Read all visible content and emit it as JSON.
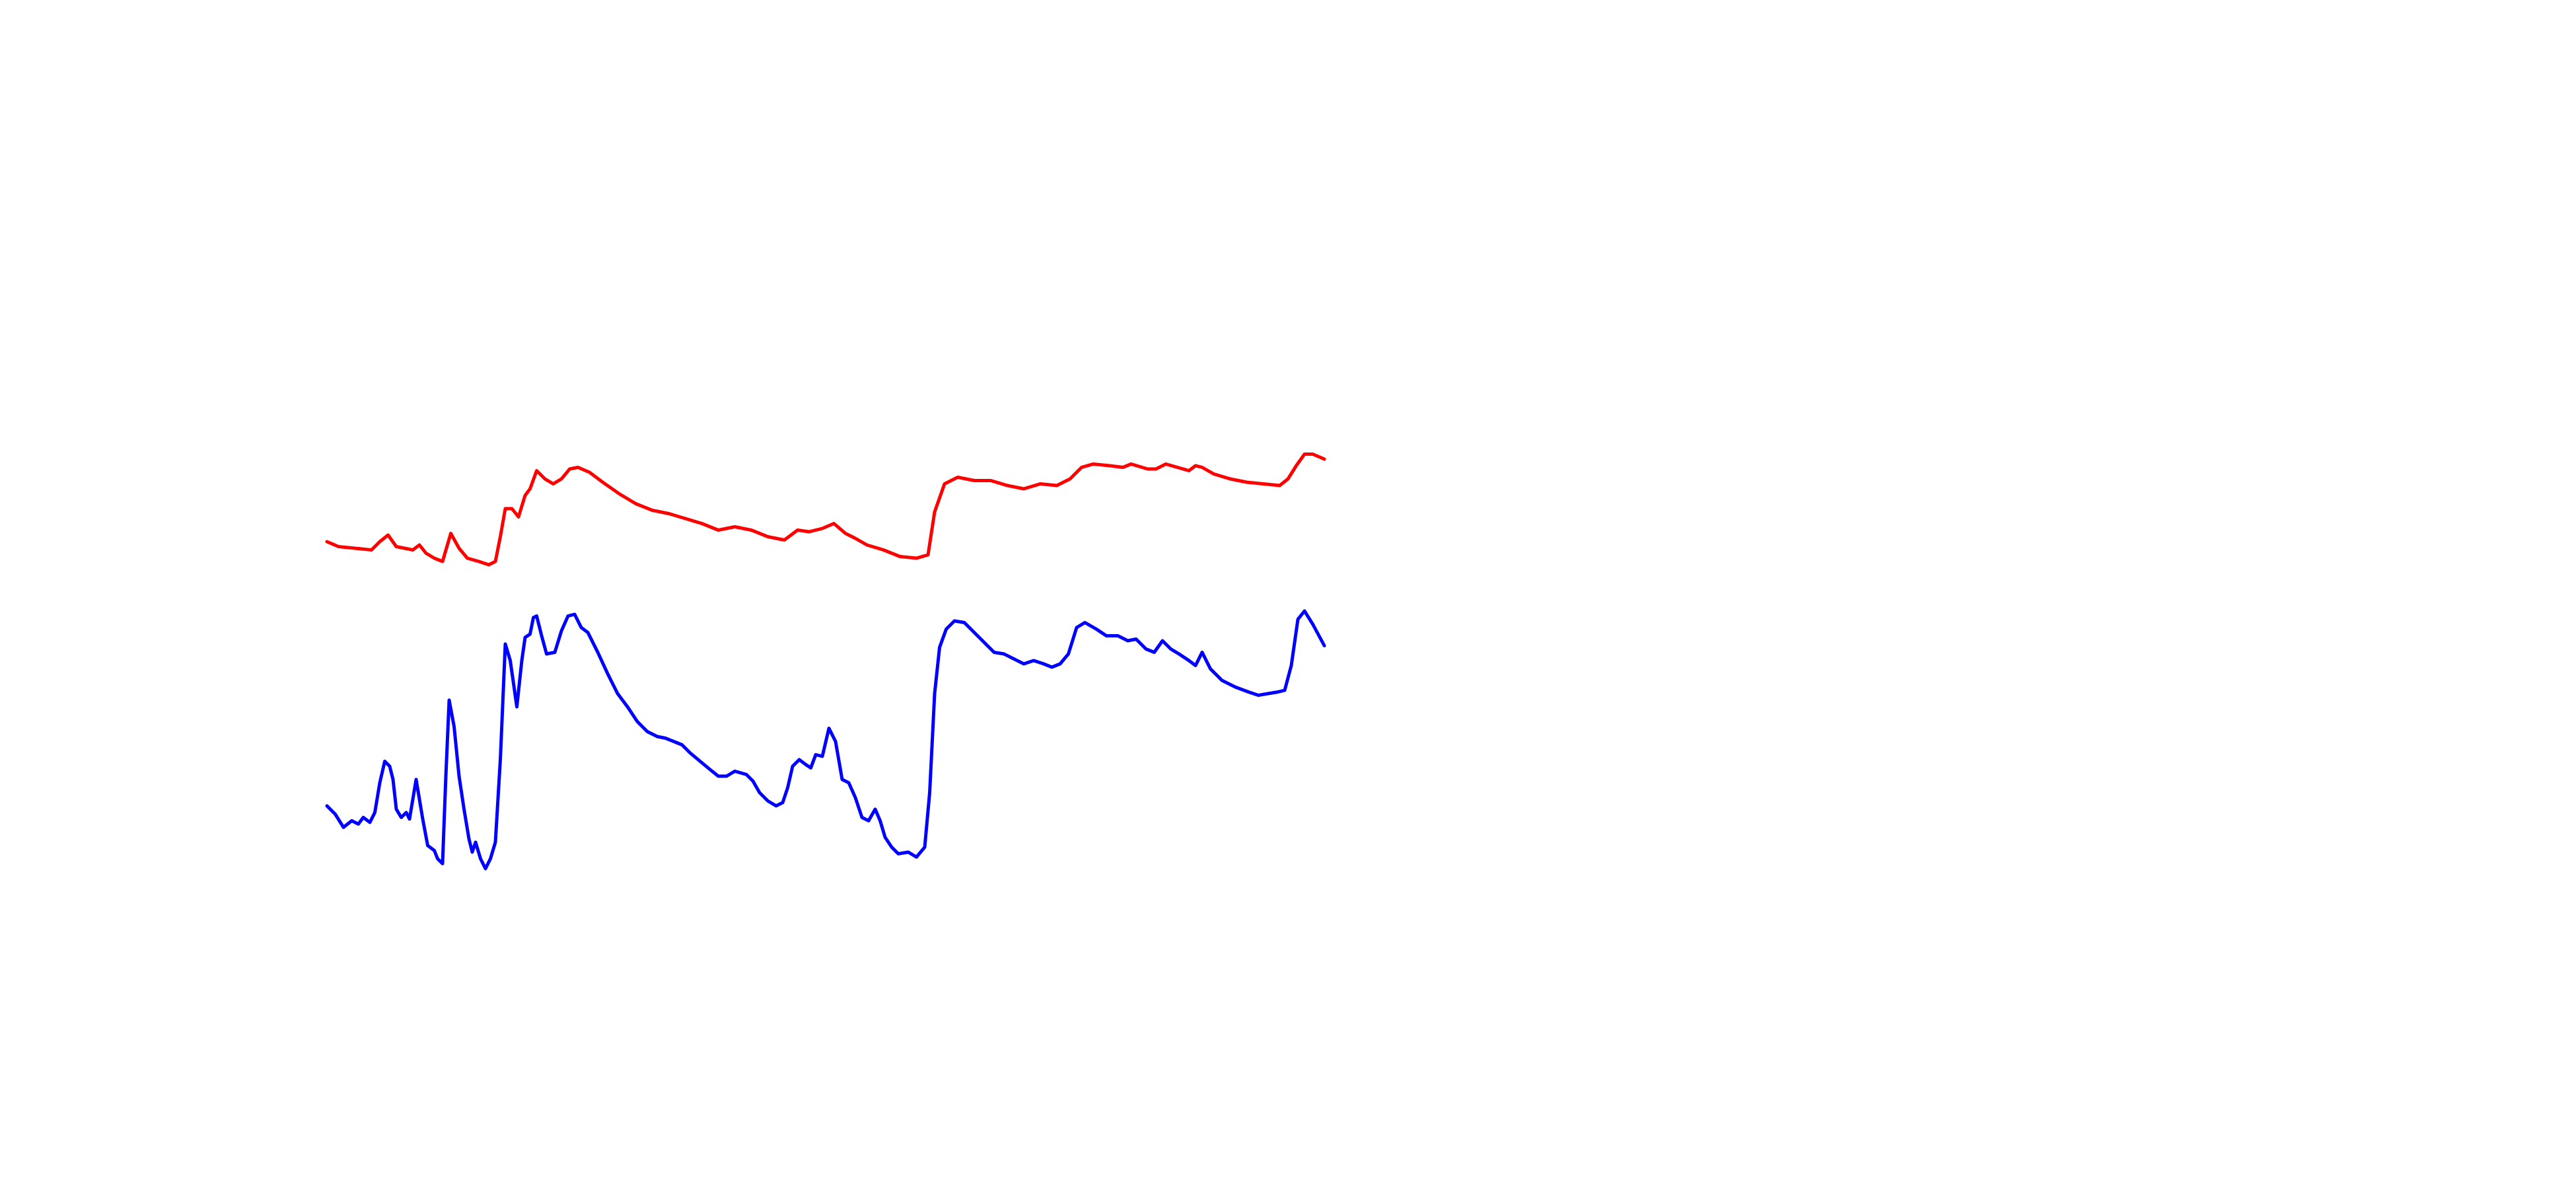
{
  "chart_data": {
    "type": "line",
    "xlim": [
      198,
      802
    ],
    "ylim": [
      180,
      540
    ],
    "series": [
      {
        "color": "#ff0000",
        "x": [
          198,
          205,
          215,
          225,
          230,
          235,
          240,
          245,
          250,
          254,
          258,
          263,
          268,
          273,
          278,
          283,
          290,
          296,
          300,
          303,
          306,
          310,
          314,
          318,
          321,
          325,
          330,
          335,
          340,
          345,
          350,
          357,
          365,
          375,
          385,
          395,
          405,
          415,
          425,
          435,
          445,
          455,
          465,
          475,
          483,
          490,
          498,
          505,
          512,
          518,
          525,
          535,
          545,
          555,
          562,
          566,
          572,
          580,
          590,
          600,
          610,
          620,
          630,
          640,
          648,
          655,
          662,
          672,
          680,
          685,
          695,
          700,
          706,
          713,
          720,
          724,
          728,
          735,
          745,
          755,
          765,
          775,
          780,
          785,
          790,
          795,
          802
        ],
        "values": [
          392,
          389,
          388,
          387,
          392,
          396,
          389,
          388,
          387,
          390,
          385,
          382,
          380,
          397,
          388,
          382,
          380,
          378,
          380,
          395,
          412,
          412,
          407,
          420,
          424,
          435,
          430,
          427,
          430,
          436,
          437,
          434,
          428,
          421,
          415,
          411,
          409,
          406,
          403,
          399,
          401,
          399,
          395,
          393,
          399,
          398,
          400,
          403,
          397,
          394,
          390,
          387,
          383,
          382,
          384,
          410,
          427,
          431,
          429,
          429,
          426,
          424,
          427,
          426,
          430,
          437,
          439,
          438,
          437,
          439,
          436,
          436,
          439,
          437,
          435,
          438,
          437,
          433,
          430,
          428,
          427,
          426,
          430,
          438,
          445,
          445,
          442
        ]
      },
      {
        "color": "#0000ff",
        "x": [
          198,
          203,
          208,
          213,
          217,
          220,
          224,
          227,
          230,
          233,
          236,
          238,
          240,
          243,
          246,
          248,
          252,
          256,
          259,
          263,
          265,
          268,
          270,
          272,
          275,
          278,
          281,
          284,
          286,
          288,
          291,
          294,
          297,
          300,
          303,
          306,
          309,
          313,
          316,
          318,
          321,
          323,
          325,
          328,
          331,
          336,
          340,
          344,
          348,
          352,
          356,
          362,
          368,
          374,
          380,
          386,
          392,
          398,
          403,
          408,
          413,
          418,
          424,
          430,
          435,
          440,
          445,
          452,
          456,
          460,
          465,
          470,
          474,
          477,
          480,
          484,
          488,
          491,
          494,
          498,
          502,
          506,
          510,
          514,
          518,
          522,
          526,
          530,
          533,
          536,
          540,
          544,
          550,
          555,
          560,
          563,
          566,
          569,
          573,
          578,
          584,
          590,
          596,
          602,
          608,
          614,
          620,
          626,
          632,
          637,
          642,
          647,
          652,
          657,
          664,
          670,
          677,
          683,
          688,
          694,
          699,
          704,
          709,
          714,
          720,
          724,
          728,
          733,
          740,
          748,
          756,
          762,
          768,
          774,
          778,
          782,
          786,
          790,
          795,
          802
        ],
        "values": [
          232,
          227,
          219,
          223,
          221,
          225,
          222,
          228,
          246,
          259,
          256,
          248,
          230,
          225,
          228,
          224,
          248,
          224,
          208,
          205,
          200,
          197,
          250,
          296,
          280,
          250,
          230,
          212,
          204,
          210,
          200,
          194,
          200,
          210,
          260,
          330,
          320,
          292,
          320,
          334,
          336,
          346,
          347,
          335,
          324,
          325,
          338,
          347,
          348,
          340,
          337,
          325,
          312,
          300,
          292,
          283,
          277,
          274,
          273,
          271,
          269,
          264,
          259,
          254,
          250,
          250,
          253,
          251,
          247,
          240,
          235,
          232,
          234,
          243,
          256,
          260,
          257,
          255,
          263,
          262,
          279,
          271,
          248,
          246,
          237,
          225,
          223,
          230,
          223,
          213,
          207,
          203,
          204,
          201,
          207,
          240,
          300,
          328,
          339,
          344,
          343,
          337,
          331,
          325,
          324,
          321,
          318,
          320,
          318,
          316,
          318,
          324,
          340,
          343,
          339,
          335,
          335,
          332,
          333,
          327,
          325,
          332,
          327,
          324,
          320,
          317,
          325,
          315,
          308,
          304,
          301,
          299,
          300,
          301,
          302,
          317,
          345,
          350,
          342,
          329
        ]
      }
    ]
  }
}
